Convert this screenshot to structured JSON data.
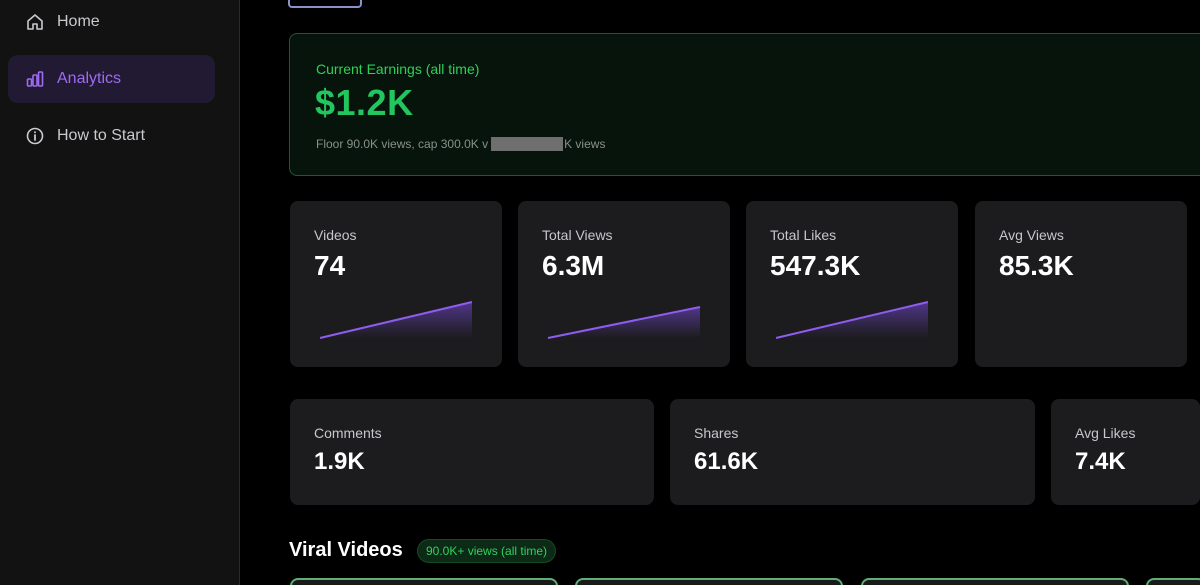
{
  "sidebar": {
    "items": [
      {
        "label": "Home",
        "icon": "home-icon"
      },
      {
        "label": "Analytics",
        "icon": "bar-chart-icon",
        "active": true
      },
      {
        "label": "How to Start",
        "icon": "info-icon"
      }
    ]
  },
  "earnings": {
    "label": "Current Earnings (all time)",
    "amount": "$1.2K",
    "sub_prefix": "Floor 90.0K views, cap 300.0K v",
    "sub_suffix": "K views"
  },
  "stats_row1": [
    {
      "label": "Videos",
      "value": "74",
      "sparkline": true
    },
    {
      "label": "Total Views",
      "value": "6.3M",
      "sparkline": true
    },
    {
      "label": "Total Likes",
      "value": "547.3K",
      "sparkline": true
    },
    {
      "label": "Avg Views",
      "value": "85.3K",
      "sparkline": false
    }
  ],
  "stats_row2": [
    {
      "label": "Comments",
      "value": "1.9K"
    },
    {
      "label": "Shares",
      "value": "61.6K"
    },
    {
      "label": "Avg Likes",
      "value": "7.4K"
    }
  ],
  "viral": {
    "title": "Viral Videos",
    "badge": "90.0K+ views (all time)"
  },
  "colors": {
    "accent": "#9d6cf2",
    "earnings_green": "#22c55e",
    "card_bg": "#1c1c1e",
    "sidebar_bg": "#121212"
  }
}
